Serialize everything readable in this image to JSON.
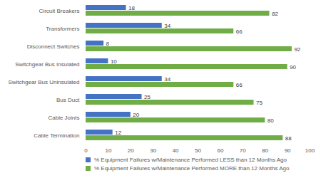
{
  "chart_data": {
    "type": "bar",
    "orientation": "horizontal",
    "categories": [
      "Circuit Breakers",
      "Transformers",
      "Disconnect Switches",
      "Switchgear Bus Insulated",
      "Switchgear Bus Uninsulated",
      "Bus Duct",
      "Cable Joints",
      "Cable Termination"
    ],
    "series": [
      {
        "name": "% Equipment Failures w/Maintenance Performed LESS than 12 Months Ago",
        "color": "#4472c4",
        "values": [
          18,
          34,
          8,
          10,
          34,
          25,
          20,
          12
        ]
      },
      {
        "name": "% Equipment Failures w/Maintenance Performed MORE than 12 Months Ago",
        "color": "#70ad47",
        "values": [
          82,
          66,
          92,
          90,
          66,
          75,
          80,
          88
        ]
      }
    ],
    "xlim": [
      0,
      100
    ],
    "xticks": [
      0,
      10,
      20,
      30,
      40,
      50,
      60,
      70,
      80,
      90,
      100
    ],
    "data_labels": true,
    "grid": false,
    "legend": "bottom"
  }
}
